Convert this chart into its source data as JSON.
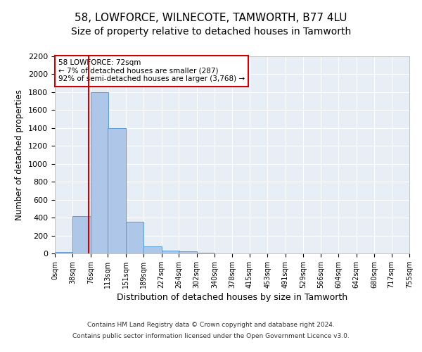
{
  "title": "58, LOWFORCE, WILNECOTE, TAMWORTH, B77 4LU",
  "subtitle": "Size of property relative to detached houses in Tamworth",
  "xlabel": "Distribution of detached houses by size in Tamworth",
  "ylabel": "Number of detached properties",
  "bin_edges": [
    0,
    38,
    76,
    113,
    151,
    189,
    227,
    264,
    302,
    340,
    378,
    415,
    453,
    491,
    529,
    566,
    604,
    642,
    680,
    717,
    755
  ],
  "bar_heights": [
    15,
    420,
    1800,
    1400,
    350,
    80,
    35,
    20,
    5,
    0,
    0,
    0,
    0,
    0,
    0,
    0,
    0,
    0,
    0,
    0
  ],
  "bar_color": "#aec6e8",
  "bar_edge_color": "#5b9bd5",
  "property_value": 72,
  "property_line_color": "#cc0000",
  "annotation_line1": "58 LOWFORCE: 72sqm",
  "annotation_line2": "← 7% of detached houses are smaller (287)",
  "annotation_line3": "92% of semi-detached houses are larger (3,768) →",
  "annotation_box_color": "#cc0000",
  "ylim": [
    0,
    2200
  ],
  "yticks": [
    0,
    200,
    400,
    600,
    800,
    1000,
    1200,
    1400,
    1600,
    1800,
    2000,
    2200
  ],
  "background_color": "#e8eef5",
  "grid_color": "#ffffff",
  "footer_line1": "Contains HM Land Registry data © Crown copyright and database right 2024.",
  "footer_line2": "Contains public sector information licensed under the Open Government Licence v3.0.",
  "title_fontsize": 11,
  "subtitle_fontsize": 10,
  "tick_label_fontsize": 7,
  "ylabel_fontsize": 8.5,
  "xlabel_fontsize": 9
}
